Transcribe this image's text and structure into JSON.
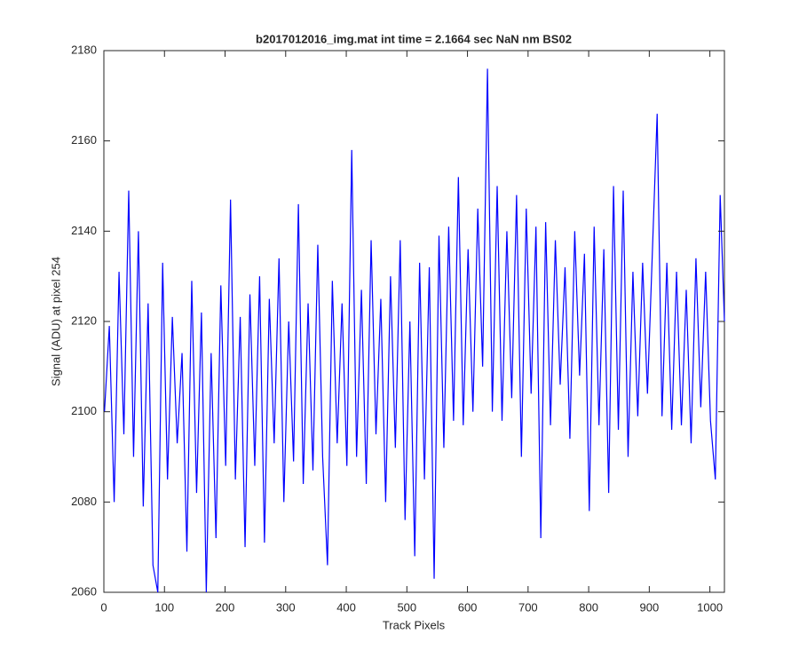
{
  "chart_data": {
    "type": "line",
    "title": "b2017012016_img.mat int time = 2.1664 sec  NaN nm BS02",
    "xlabel": "Track Pixels",
    "ylabel": "Signal (ADU) at pixel 254",
    "x": [
      1,
      9,
      17,
      25,
      33,
      41,
      49,
      57,
      65,
      73,
      81,
      89,
      97,
      105,
      113,
      121,
      129,
      137,
      145,
      153,
      161,
      169,
      177,
      185,
      193,
      201,
      209,
      217,
      225,
      233,
      241,
      249,
      257,
      265,
      273,
      281,
      289,
      297,
      305,
      313,
      321,
      329,
      337,
      345,
      353,
      361,
      369,
      377,
      385,
      393,
      401,
      409,
      417,
      425,
      433,
      441,
      449,
      457,
      465,
      473,
      481,
      489,
      497,
      505,
      513,
      521,
      529,
      537,
      545,
      553,
      561,
      569,
      577,
      585,
      593,
      601,
      609,
      617,
      625,
      633,
      641,
      649,
      657,
      665,
      673,
      681,
      689,
      697,
      705,
      713,
      721,
      729,
      737,
      745,
      753,
      761,
      769,
      777,
      785,
      793,
      801,
      809,
      817,
      825,
      833,
      841,
      849,
      857,
      865,
      873,
      881,
      889,
      897,
      905,
      913,
      921,
      929,
      937,
      945,
      953,
      961,
      969,
      977,
      985,
      993,
      1001,
      1009,
      1017,
      1024
    ],
    "series": [
      {
        "color": "#0000ff",
        "values": [
          2100,
          2119,
          2080,
          2131,
          2095,
          2149,
          2090,
          2140,
          2079,
          2124,
          2066,
          2060,
          2133,
          2085,
          2121,
          2093,
          2113,
          2069,
          2129,
          2082,
          2122,
          2060,
          2113,
          2072,
          2128,
          2088,
          2147,
          2085,
          2121,
          2070,
          2126,
          2088,
          2130,
          2071,
          2125,
          2093,
          2134,
          2080,
          2120,
          2089,
          2146,
          2084,
          2124,
          2087,
          2137,
          2090,
          2066,
          2129,
          2093,
          2124,
          2088,
          2158,
          2090,
          2127,
          2084,
          2138,
          2095,
          2125,
          2080,
          2130,
          2092,
          2138,
          2076,
          2120,
          2068,
          2133,
          2085,
          2132,
          2063,
          2139,
          2092,
          2141,
          2098,
          2152,
          2097,
          2136,
          2100,
          2145,
          2110,
          2176,
          2100,
          2150,
          2098,
          2140,
          2103,
          2148,
          2090,
          2145,
          2104,
          2141,
          2072,
          2142,
          2097,
          2138,
          2106,
          2132,
          2094,
          2140,
          2108,
          2135,
          2078,
          2141,
          2097,
          2136,
          2082,
          2150,
          2096,
          2149,
          2090,
          2131,
          2099,
          2133,
          2104,
          2135,
          2166,
          2099,
          2133,
          2096,
          2131,
          2097,
          2127,
          2093,
          2134,
          2101,
          2131,
          2098,
          2085,
          2148,
          2120
        ]
      }
    ],
    "xlim": [
      0,
      1024
    ],
    "ylim": [
      2060,
      2180
    ],
    "xticks": [
      0,
      100,
      200,
      300,
      400,
      500,
      600,
      700,
      800,
      900,
      1000
    ],
    "yticks": [
      2060,
      2080,
      2100,
      2120,
      2140,
      2160,
      2180
    ]
  }
}
